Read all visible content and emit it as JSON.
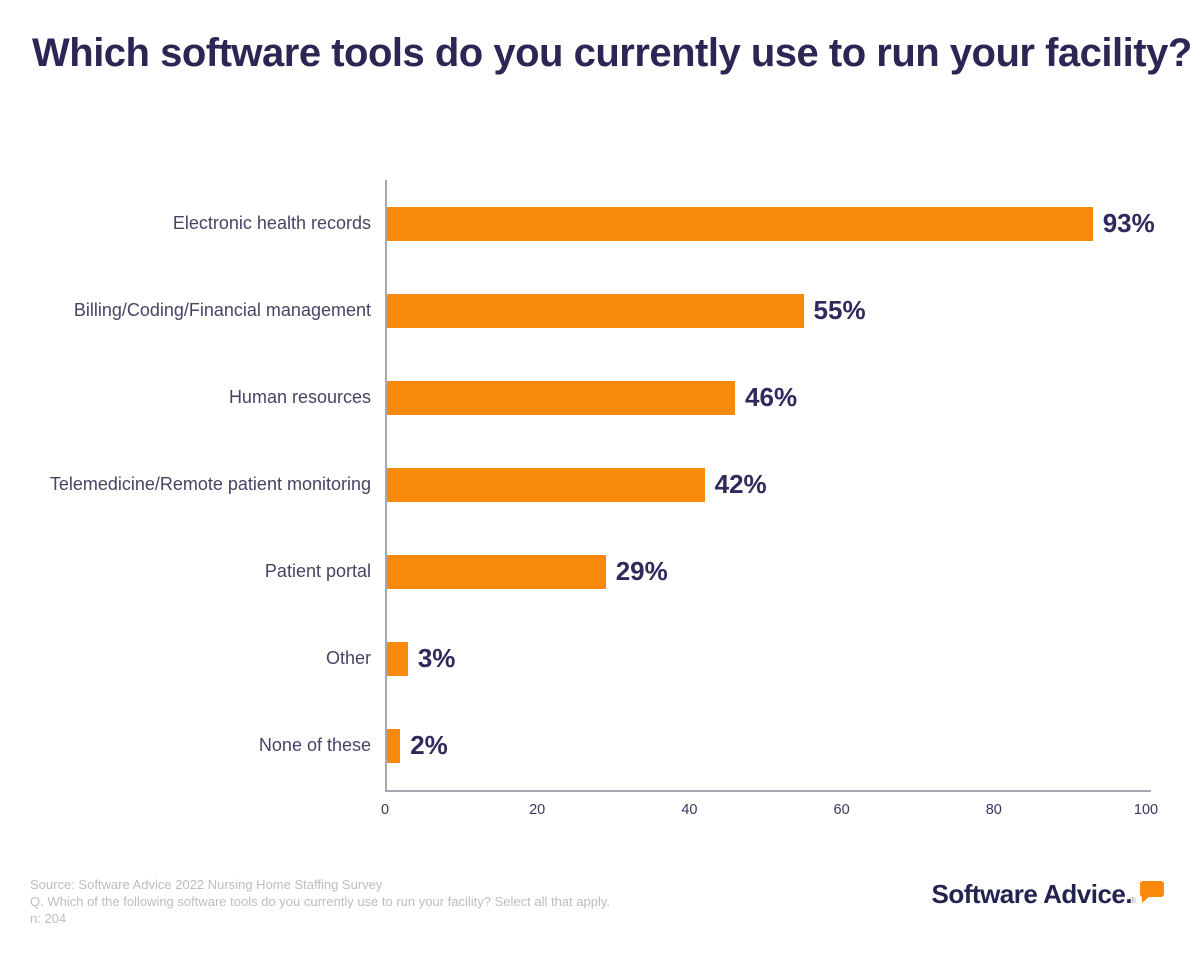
{
  "title": "Which software tools do you currently use to run your facility?",
  "chart_data": {
    "type": "bar",
    "orientation": "horizontal",
    "title": "Which software tools do you currently use to run your facility?",
    "categories": [
      "Electronic health records",
      "Billing/Coding/Financial management",
      "Human resources",
      "Telemedicine/Remote patient monitoring",
      "Patient portal",
      "Other",
      "None of these"
    ],
    "values": [
      93,
      55,
      46,
      42,
      29,
      3,
      2
    ],
    "value_labels": [
      "93%",
      "55%",
      "46%",
      "42%",
      "29%",
      "3%",
      "2%"
    ],
    "xlabel": "",
    "ylabel": "",
    "xlim": [
      0,
      100
    ],
    "x_ticks": [
      0,
      20,
      40,
      60,
      80,
      100
    ],
    "grid": false,
    "legend": false,
    "bar_color": "#F8890B"
  },
  "footer": {
    "source_line": "Source: Software Advice 2022 Nursing Home Staffing Survey",
    "question_line": "Q. Which of the following software tools do you currently use to run your facility? Select all that apply.",
    "n_line": "n: 204"
  },
  "logo": {
    "text": "Software Advice.",
    "registered_mark": "®"
  },
  "colors": {
    "title": "#2D2654",
    "bar": "#F8890B",
    "value_label": "#2E2A5C",
    "category_label": "#474363",
    "tick_label": "#39365E",
    "axis_line": "#A9A8B2",
    "footer_text": "#BDBDC1",
    "logo_text": "#232350",
    "logo_mark": "#F8890B"
  }
}
